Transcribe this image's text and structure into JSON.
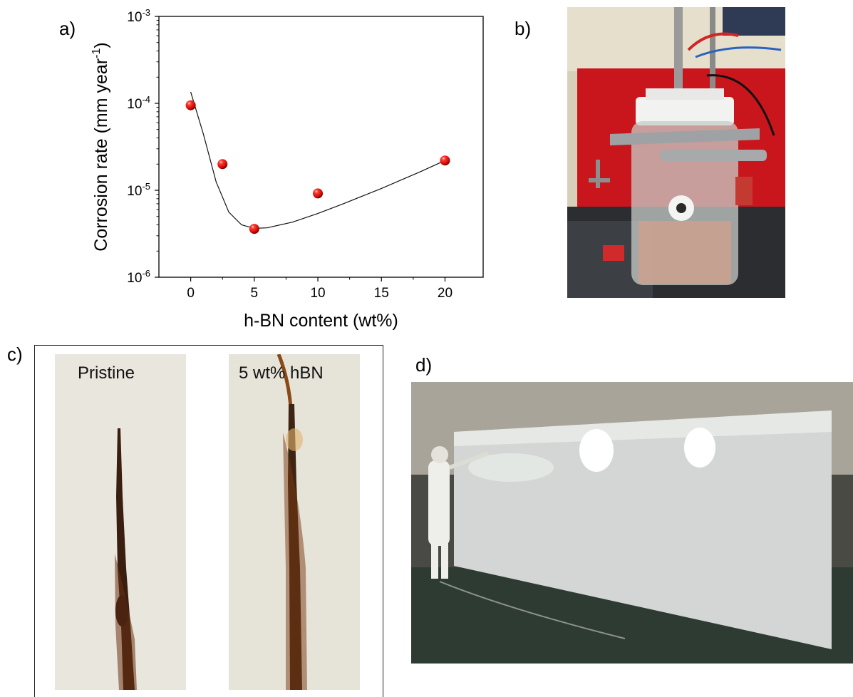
{
  "figure": {
    "panel_labels": {
      "a": "a)",
      "b": "b)",
      "c": "c)",
      "d": "d)"
    },
    "panel_c": {
      "left_label": "Pristine",
      "right_label": "5 wt% hBN"
    }
  },
  "chart_data": {
    "type": "scatter",
    "title": "",
    "xlabel": "h-BN content (wt%)",
    "ylabel": "Corrosion rate (mm year",
    "ylabel_superscript": "-1",
    "ylabel_suffix": ")",
    "x_scale": "linear",
    "y_scale": "log",
    "xlim": [
      -2.5,
      23
    ],
    "ylim": [
      1e-06,
      0.001
    ],
    "x_ticks": [
      0,
      5,
      10,
      15,
      20
    ],
    "x_tick_labels": [
      "0",
      "5",
      "10",
      "15",
      "20"
    ],
    "y_ticks": [
      1e-06,
      1e-05,
      0.0001,
      0.001
    ],
    "y_tick_labels": [
      {
        "base": "10",
        "exp": "-6"
      },
      {
        "base": "10",
        "exp": "-5"
      },
      {
        "base": "10",
        "exp": "-4"
      },
      {
        "base": "10",
        "exp": "-3"
      }
    ],
    "series": [
      {
        "x": [
          0,
          2.5,
          5,
          10,
          20
        ],
        "y": [
          9.5e-05,
          2e-05,
          3.6e-06,
          9.2e-06,
          2.2e-05
        ],
        "color": "#e8140f",
        "marker": "sphere"
      }
    ],
    "fit_curve": {
      "x": [
        0,
        1,
        2,
        3,
        4,
        5,
        6,
        8,
        10,
        12,
        15,
        18,
        20
      ],
      "y": [
        0.000135,
        4.4e-05,
        1.25e-05,
        5.6e-06,
        4e-06,
        3.65e-06,
        3.7e-06,
        4.3e-06,
        5.4e-06,
        7e-06,
        1.05e-05,
        1.62e-05,
        2.2e-05
      ],
      "color": "#111111"
    },
    "grid": false,
    "legend": "none"
  }
}
